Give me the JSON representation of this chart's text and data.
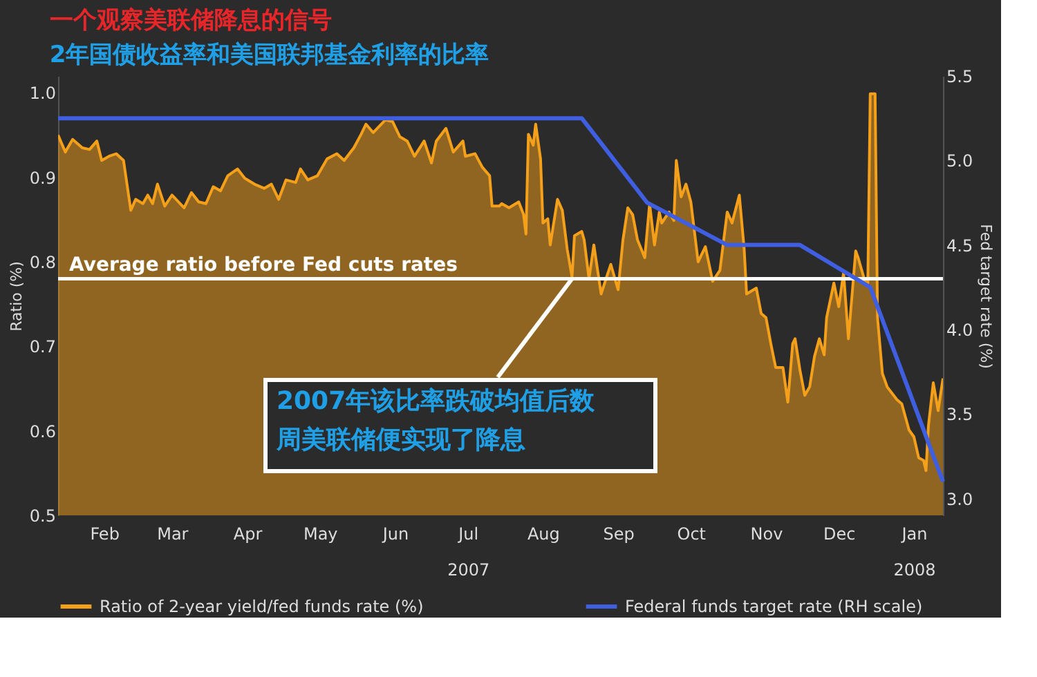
{
  "chart_data": {
    "type": "area",
    "title": "一个观察美联储降息的信号",
    "subtitle": "2年国债收益率和美国联邦基金利率的比率",
    "ylabel": "Ratio (%)",
    "y2label": "Fed target rate (%)",
    "xlim": [
      "2007-01-27",
      "2008-01-27"
    ],
    "xticks": [
      {
        "value": "2007-02-15",
        "label": "Feb"
      },
      {
        "value": "2007-03-15",
        "label": "Mar"
      },
      {
        "value": "2007-04-15",
        "label": "Apr"
      },
      {
        "value": "2007-05-15",
        "label": "May"
      },
      {
        "value": "2007-06-15",
        "label": "Jun"
      },
      {
        "value": "2007-07-15",
        "label": "Jul\n2007"
      },
      {
        "value": "2007-08-15",
        "label": "Aug"
      },
      {
        "value": "2007-09-15",
        "label": "Sep"
      },
      {
        "value": "2007-10-15",
        "label": "Oct"
      },
      {
        "value": "2007-11-15",
        "label": "Nov"
      },
      {
        "value": "2007-12-15",
        "label": "Dec"
      },
      {
        "value": "2008-01-15",
        "label": "Jan\n2008"
      }
    ],
    "ylim": [
      0.5,
      1.02
    ],
    "yticks": [
      0.5,
      0.6,
      0.7,
      0.8,
      0.9,
      {
        "value": 1.0,
        "label": "1.0"
      }
    ],
    "y2lim": [
      2.9,
      5.5
    ],
    "y2ticks": [
      {
        "value": 3.0,
        "label": "3.0"
      },
      3.5,
      {
        "value": 4.0,
        "label": "4.0"
      },
      4.5,
      {
        "value": 5.0,
        "label": "5.0"
      },
      5.5
    ],
    "series": [
      {
        "name": "Ratio of 2-year yield/fed funds rate (%)",
        "color": "#f5a01a",
        "x": [
          "2007-01-27",
          "2007-01-30",
          "2007-02-02",
          "2007-02-06",
          "2007-02-09",
          "2007-02-12",
          "2007-02-14",
          "2007-02-17",
          "2007-02-20",
          "2007-02-23",
          "2007-02-26",
          "2007-02-28",
          "2007-03-03",
          "2007-03-05",
          "2007-03-07",
          "2007-03-09",
          "2007-03-12",
          "2007-03-15",
          "2007-03-20",
          "2007-03-23",
          "2007-03-26",
          "2007-03-29",
          "2007-04-01",
          "2007-04-04",
          "2007-04-07",
          "2007-04-11",
          "2007-04-14",
          "2007-04-18",
          "2007-04-22",
          "2007-04-25",
          "2007-04-28",
          "2007-05-01",
          "2007-05-05",
          "2007-05-07",
          "2007-05-10",
          "2007-05-14",
          "2007-05-18",
          "2007-05-22",
          "2007-05-25",
          "2007-05-29",
          "2007-06-01",
          "2007-06-03",
          "2007-06-06",
          "2007-06-11",
          "2007-06-14",
          "2007-06-17",
          "2007-06-20",
          "2007-06-23",
          "2007-06-27",
          "2007-06-30",
          "2007-07-02",
          "2007-07-06",
          "2007-07-09",
          "2007-07-13",
          "2007-07-14",
          "2007-07-18",
          "2007-07-21",
          "2007-07-24",
          "2007-07-25",
          "2007-07-28",
          "2007-07-29",
          "2007-08-01",
          "2007-08-05",
          "2007-08-07",
          "2007-08-08",
          "2007-08-09",
          "2007-08-11",
          "2007-08-12",
          "2007-08-14",
          "2007-08-15",
          "2007-08-17",
          "2007-08-18",
          "2007-08-21",
          "2007-08-23",
          "2007-08-25",
          "2007-08-27",
          "2007-08-28",
          "2007-08-31",
          "2007-09-01",
          "2007-09-03",
          "2007-09-05",
          "2007-09-08",
          "2007-09-10",
          "2007-09-12",
          "2007-09-15",
          "2007-09-17",
          "2007-09-19",
          "2007-09-21",
          "2007-09-23",
          "2007-09-26",
          "2007-09-28",
          "2007-09-30",
          "2007-10-02",
          "2007-10-03",
          "2007-10-06",
          "2007-10-08",
          "2007-10-09",
          "2007-10-11",
          "2007-10-13",
          "2007-10-15",
          "2007-10-18",
          "2007-10-21",
          "2007-10-24",
          "2007-10-27",
          "2007-10-30",
          "2007-11-01",
          "2007-11-04",
          "2007-11-06",
          "2007-11-07",
          "2007-11-11",
          "2007-11-13",
          "2007-11-15",
          "2007-11-17",
          "2007-11-19",
          "2007-11-22",
          "2007-11-24",
          "2007-11-26",
          "2007-11-27",
          "2007-11-29",
          "2007-12-01",
          "2007-12-03",
          "2007-12-05",
          "2007-12-07",
          "2007-12-09",
          "2007-12-10",
          "2007-12-13",
          "2007-12-15",
          "2007-12-17",
          "2007-12-19",
          "2007-12-22",
          "2007-12-23",
          "2007-12-26",
          "2007-12-27",
          "2007-12-28",
          "2007-12-30",
          "2007-12-31",
          "2008-01-02",
          "2008-01-04",
          "2008-01-08",
          "2008-01-10",
          "2008-01-13",
          "2008-01-15",
          "2008-01-17",
          "2008-01-19",
          "2008-01-20",
          "2008-01-21",
          "2008-01-23",
          "2008-01-25",
          "2008-01-27"
        ],
        "values": [
          0.95,
          0.93,
          0.945,
          0.935,
          0.933,
          0.943,
          0.92,
          0.925,
          0.928,
          0.92,
          0.861,
          0.874,
          0.869,
          0.879,
          0.869,
          0.892,
          0.866,
          0.879,
          0.864,
          0.882,
          0.871,
          0.869,
          0.889,
          0.884,
          0.902,
          0.91,
          0.899,
          0.892,
          0.887,
          0.892,
          0.874,
          0.897,
          0.894,
          0.91,
          0.897,
          0.902,
          0.922,
          0.928,
          0.92,
          0.935,
          0.951,
          0.963,
          0.953,
          0.968,
          0.966,
          0.948,
          0.943,
          0.925,
          0.943,
          0.917,
          0.943,
          0.958,
          0.93,
          0.943,
          0.925,
          0.928,
          0.912,
          0.902,
          0.866,
          0.866,
          0.869,
          0.864,
          0.871,
          0.856,
          0.833,
          0.951,
          0.938,
          0.963,
          0.922,
          0.846,
          0.851,
          0.82,
          0.874,
          0.861,
          0.815,
          0.782,
          0.831,
          0.836,
          0.826,
          0.78,
          0.82,
          0.762,
          0.78,
          0.797,
          0.767,
          0.826,
          0.864,
          0.856,
          0.826,
          0.805,
          0.869,
          0.82,
          0.859,
          0.846,
          0.859,
          0.849,
          0.92,
          0.877,
          0.892,
          0.871,
          0.8,
          0.818,
          0.777,
          0.79,
          0.859,
          0.846,
          0.879,
          0.815,
          0.762,
          0.769,
          0.739,
          0.734,
          0.703,
          0.675,
          0.675,
          0.634,
          0.703,
          0.709,
          0.672,
          0.642,
          0.652,
          0.688,
          0.709,
          0.69,
          0.734,
          0.775,
          0.747,
          0.787,
          0.709,
          0.813,
          0.805,
          0.775,
          0.775,
          0.999,
          0.999,
          0.734,
          0.668,
          0.652,
          0.637,
          0.632,
          0.601,
          0.593,
          0.568,
          0.565,
          0.553,
          0.606,
          0.657,
          0.624,
          0.662
        ]
      },
      {
        "name": "Federal funds target rate (RH scale)",
        "type": "line",
        "color": "#3f5fe0",
        "axis": "y2",
        "x": [
          "2007-01-27",
          "2007-08-31",
          "2007-09-27",
          "2007-10-30",
          "2007-11-29",
          "2007-12-28",
          "2008-01-27"
        ],
        "values": [
          5.25,
          5.25,
          4.75,
          4.5,
          4.5,
          4.25,
          3.1
        ]
      }
    ],
    "ref_lines": [
      {
        "axis": "y",
        "value": 0.78,
        "label": "Average ratio before Fed cuts rates",
        "color": "#ffffff"
      }
    ],
    "annotations": [
      {
        "text": "2007年该比率跌破均值后数周美联储便实现了降息",
        "x": "2007-08-27",
        "y": 0.78
      }
    ],
    "legend": "bottom",
    "grid": false
  }
}
